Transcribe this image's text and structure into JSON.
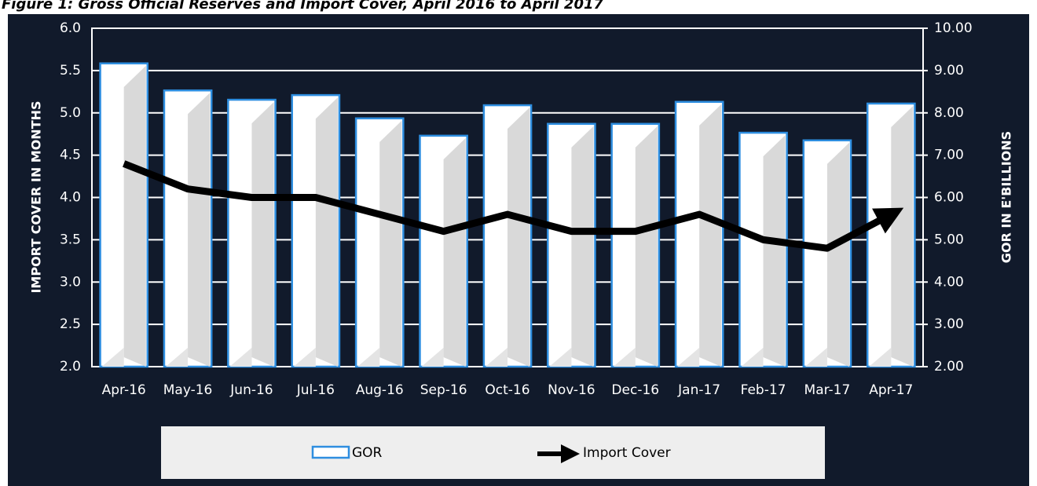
{
  "chart_data": {
    "type": "bar-line",
    "title": "Figure 1: Gross Official Reserves and Import Cover, April 2016 to April 2017",
    "y_label": "IMPORT COVER IN MONTHS",
    "y2_label": "GOR IN E'BILLIONS",
    "categories": [
      "Apr-16",
      "May-16",
      "Jun-16",
      "Jul-16",
      "Aug-16",
      "Sep-16",
      "Oct-16",
      "Nov-16",
      "Dec-16",
      "Jan-17",
      "Feb-17",
      "Mar-17",
      "Apr-17"
    ],
    "series": [
      {
        "name": "GOR",
        "type": "bar",
        "axis": "y2",
        "color": "#ffffff",
        "edge_color": "#2e8ee0",
        "values": [
          9.17,
          8.53,
          8.31,
          8.42,
          7.87,
          7.46,
          8.18,
          7.74,
          7.74,
          8.26,
          7.53,
          7.35,
          8.22
        ]
      },
      {
        "name": "Import Cover",
        "type": "line",
        "axis": "y",
        "color": "#000000",
        "values": [
          4.4,
          4.1,
          4.0,
          4.0,
          3.8,
          3.6,
          3.8,
          3.6,
          3.6,
          3.8,
          3.5,
          3.4,
          3.8
        ]
      }
    ],
    "ylim": [
      2.0,
      6.0
    ],
    "yticks": [
      {
        "value": 2,
        "label": "2.0"
      },
      2.5,
      {
        "value": 3,
        "label": "3.0"
      },
      3.5,
      {
        "value": 4,
        "label": "4.0"
      },
      4.5,
      {
        "value": 5,
        "label": "5.0"
      },
      5.5,
      {
        "value": 6,
        "label": "6.0"
      }
    ],
    "y2lim": [
      2.0,
      10.0
    ],
    "y2ticks": [
      {
        "value": 2,
        "label": "2.00"
      },
      {
        "value": 3,
        "label": "3.00"
      },
      {
        "value": 4,
        "label": "4.00"
      },
      {
        "value": 5,
        "label": "5.00"
      },
      {
        "value": 6,
        "label": "6.00"
      },
      {
        "value": 7,
        "label": "7.00"
      },
      {
        "value": 8,
        "label": "8.00"
      },
      {
        "value": 9,
        "label": "9.00"
      },
      {
        "value": 10,
        "label": "10.00"
      }
    ],
    "grid": true,
    "legend": "bottom"
  }
}
